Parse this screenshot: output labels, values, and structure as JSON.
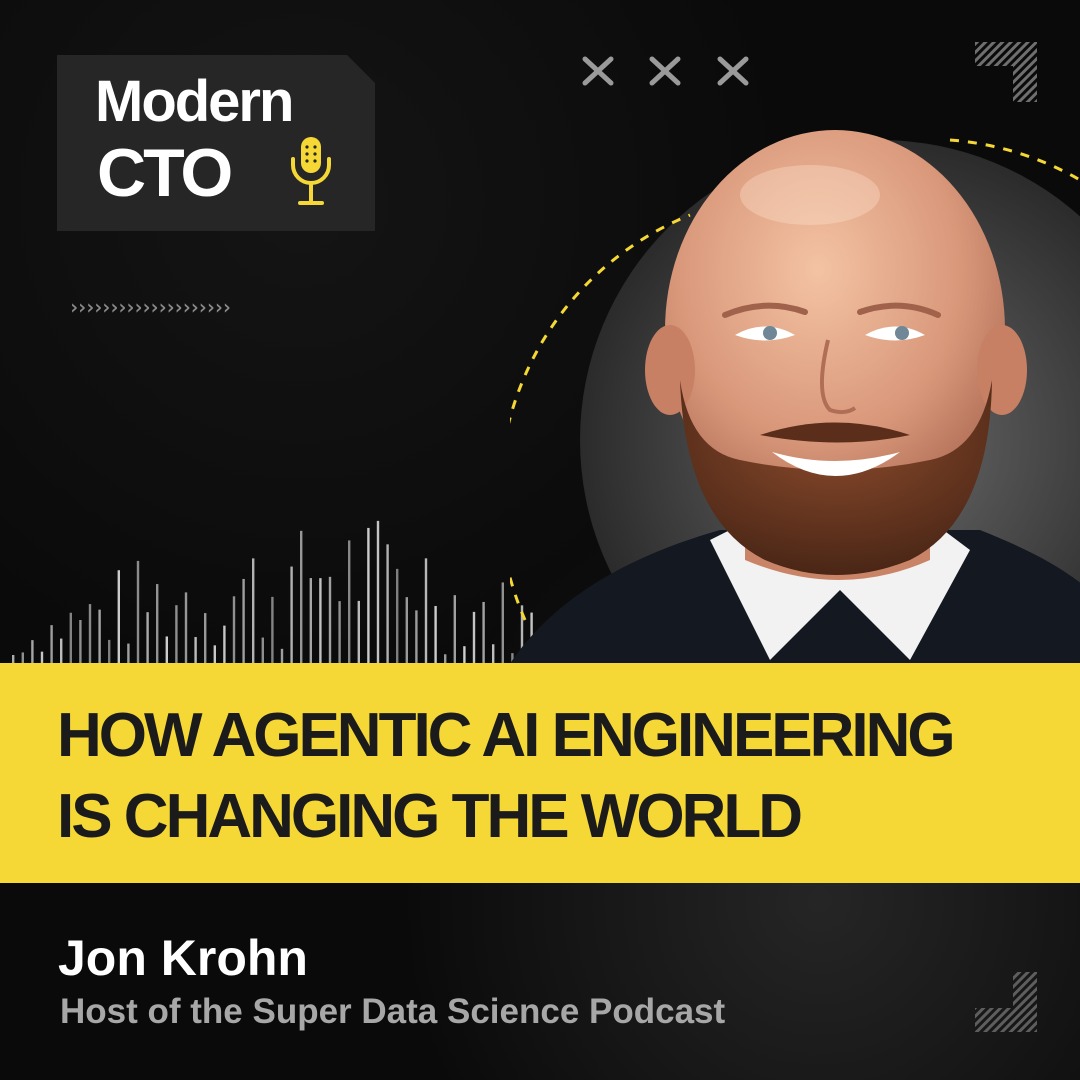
{
  "brand": {
    "logo_line1": "Modern",
    "logo_line2": "CTO",
    "accent_color": "#f5d835"
  },
  "icons": {
    "logo": "microphone-icon",
    "decor_top": "x-marks",
    "decor_left": "chevron-right-icons",
    "decor_corners": "striped-corner-brackets",
    "waveform": "audio-waveform"
  },
  "episode": {
    "title_line1": "HOW AGENTIC AI ENGINEERING",
    "title_line2": "IS CHANGING THE WORLD"
  },
  "guest": {
    "name": "Jon Krohn",
    "role": "Host of the Super Data Science Podcast"
  }
}
